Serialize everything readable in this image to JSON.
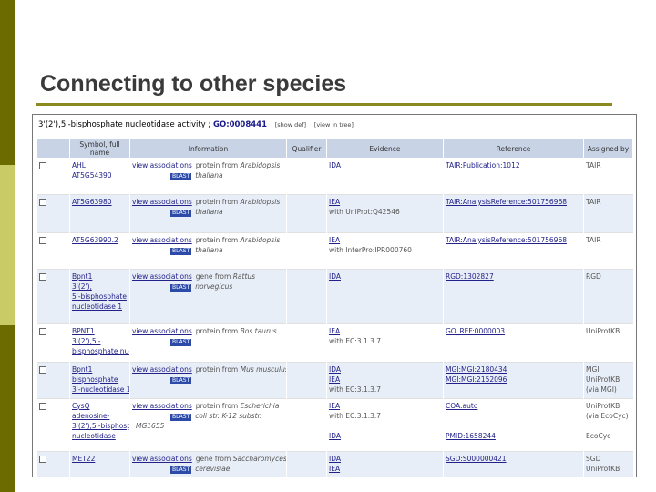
{
  "title": "Connecting to other species",
  "go_term": {
    "name": "3'(2'),5'-bisphosphate nucleotidase activity",
    "id": "GO:0008441",
    "options": [
      "[show def]",
      "[view in tree]"
    ]
  },
  "columns": [
    "",
    "Symbol, full name",
    "Information",
    "Qualifier",
    "Evidence",
    "Reference",
    "Assigned by"
  ],
  "blast_label": "BLAST",
  "view_label": "view associations",
  "rows": [
    {
      "symbol": [
        "AHL",
        "",
        "AT5G54390"
      ],
      "info": [
        "protein from",
        "Arabidopsis",
        "thaliana"
      ],
      "evidence": [
        "IDA"
      ],
      "reference": [
        "TAIR:Publication:1012"
      ],
      "assigned": [
        "TAIR"
      ]
    },
    {
      "symbol": [
        "",
        "",
        "AT5G63980"
      ],
      "info": [
        "protein from",
        "Arabidopsis",
        "thaliana"
      ],
      "evidence": [
        "IEA",
        "with UniProt:Q42546"
      ],
      "reference": [
        "TAIR:AnalysisReference:501756968"
      ],
      "assigned": [
        "TAIR"
      ]
    },
    {
      "symbol": [
        "",
        "",
        "AT5G63990.2"
      ],
      "info": [
        "protein from",
        "Arabidopsis",
        "thaliana"
      ],
      "evidence": [
        "IEA",
        "with InterPro:IPR000760"
      ],
      "reference": [
        "TAIR:AnalysisReference:501756968"
      ],
      "assigned": [
        "TAIR"
      ]
    },
    {
      "symbol": [
        "Bpnt1",
        "3'(2'),",
        "5'-bisphosphate",
        "nucleotidase 1"
      ],
      "info": [
        "gene from",
        "Rattus",
        "norvegicus"
      ],
      "evidence": [
        "IDA"
      ],
      "reference": [
        "RGD:1302827"
      ],
      "assigned": [
        "RGD"
      ]
    },
    {
      "symbol": [
        "BPNT1",
        "3'(2'),5'-",
        "bisphosphate nucleotidase 1"
      ],
      "info": [
        "protein from",
        "Bos taurus",
        ""
      ],
      "evidence": [
        "IEA",
        "with EC:3.1.3.7"
      ],
      "reference": [
        "GO_REF:0000003"
      ],
      "assigned": [
        "UniProtKB"
      ]
    },
    {
      "symbol": [
        "Bpnt1",
        "bisphosphate",
        "3'-nucleotidase 1"
      ],
      "info": [
        "protein from",
        "Mus musculus",
        ""
      ],
      "evidence": [
        "IDA",
        "IEA",
        "with EC:3.1.3.7"
      ],
      "reference": [
        "MGI:MGI:2180434",
        "MGI:MGI:2152096"
      ],
      "assigned": [
        "MGI",
        "UniProtKB",
        "(via MGI)"
      ]
    },
    {
      "symbol": [
        "CysQ",
        "adenosine-",
        "3'(2'),5'-bisphosphate",
        "nucleotidase"
      ],
      "info": [
        "protein from",
        "Escherichia",
        "coli str. K-12 substr.",
        "MG1655"
      ],
      "evidence": [
        "IEA",
        "with EC:3.1.3.7",
        "",
        "IDA"
      ],
      "reference": [
        "COA:auto",
        "",
        "",
        "PMID:1658244"
      ],
      "assigned": [
        "UniProtKB",
        "(via EcoCyc)",
        "",
        "EcoCyc"
      ]
    },
    {
      "symbol": [
        "MET22"
      ],
      "info": [
        "gene from",
        "Saccharomyces",
        "cerevisiae"
      ],
      "evidence": [
        "IDA",
        "IEA"
      ],
      "reference": [
        "SGD:S000000421"
      ],
      "assigned": [
        "SGD",
        "UniProtKB"
      ]
    }
  ]
}
